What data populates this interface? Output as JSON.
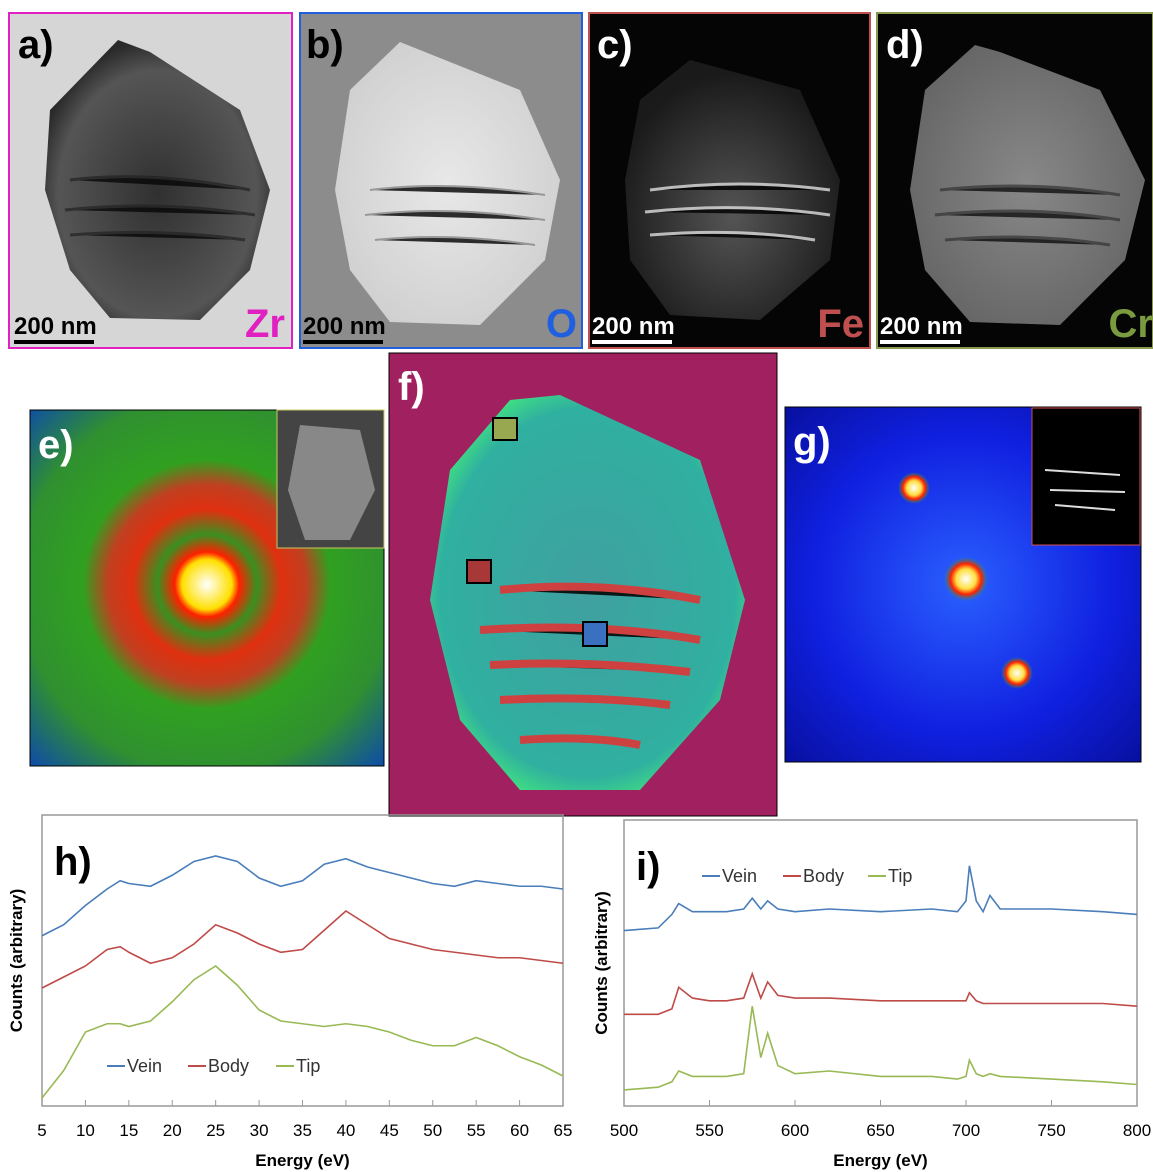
{
  "panels": [
    {
      "label": "a)",
      "element": "Zr",
      "scale_bar": "200 nm"
    },
    {
      "label": "b)",
      "element": "O",
      "scale_bar": "200 nm"
    },
    {
      "label": "c)",
      "element": "Fe",
      "scale_bar": "200 nm"
    },
    {
      "label": "d)",
      "element": "Cr",
      "scale_bar": "200 nm"
    },
    {
      "label": "e)"
    },
    {
      "label": "f)"
    },
    {
      "label": "g)"
    }
  ],
  "chart_data": [
    {
      "type": "line",
      "panel_label": "h)",
      "x_label": "Energy (eV)",
      "y_label": "Counts (arbitrary)",
      "x": [
        5,
        7.5,
        10,
        12.5,
        14,
        15,
        17.5,
        20,
        22.5,
        25,
        27.5,
        30,
        32.5,
        35,
        37.5,
        40,
        42.5,
        45,
        47.5,
        50,
        52.5,
        55,
        57.5,
        60,
        62.5,
        65
      ],
      "series": [
        {
          "name": "Vein",
          "color": "#4a7ebb",
          "values": [
            59,
            63,
            70,
            76,
            79,
            78,
            77,
            81,
            86,
            88,
            86,
            80,
            77,
            79,
            85,
            87,
            84,
            82,
            80,
            78,
            77,
            79,
            78,
            77,
            77,
            76
          ]
        },
        {
          "name": "Body",
          "color": "#be4b48",
          "values": [
            40,
            44,
            48,
            54,
            55,
            53,
            49,
            51,
            56,
            63,
            60,
            56,
            53,
            54,
            61,
            68,
            63,
            58,
            56,
            54,
            53,
            52,
            51,
            51,
            50,
            49
          ]
        },
        {
          "name": "Tip",
          "color": "#98b954",
          "values": [
            0,
            10,
            24,
            27,
            27,
            26,
            28,
            35,
            43,
            48,
            41,
            32,
            28,
            27,
            26,
            27,
            26,
            24,
            21,
            19,
            19,
            22,
            19,
            15,
            12,
            8
          ]
        }
      ],
      "xlim": [
        5,
        65
      ],
      "xticks": [
        5,
        10,
        15,
        20,
        25,
        30,
        35,
        40,
        45,
        50,
        55,
        60,
        65
      ],
      "ylim": [
        0,
        100
      ],
      "legend": "bottom"
    },
    {
      "type": "line",
      "panel_label": "i)",
      "x_label": "Energy (eV)",
      "y_label": "Counts (arbitrary)",
      "x": [
        500,
        520,
        528,
        532,
        540,
        550,
        560,
        570,
        575,
        580,
        584,
        590,
        600,
        620,
        650,
        680,
        695,
        700,
        702,
        706,
        710,
        714,
        720,
        750,
        780,
        800
      ],
      "series": [
        {
          "name": "Vein",
          "color": "#4a7ebb",
          "values": [
            62,
            63,
            68,
            72,
            69,
            69,
            69,
            70,
            74,
            70,
            73,
            70,
            69,
            70,
            69,
            70,
            69,
            73,
            86,
            73,
            69,
            75,
            70,
            70,
            69,
            68
          ]
        },
        {
          "name": "Body",
          "color": "#be4b48",
          "values": [
            31,
            31,
            33,
            41,
            37,
            36,
            36,
            37,
            46,
            37,
            43,
            38,
            37,
            37,
            36,
            36,
            36,
            36,
            39,
            36,
            35,
            35,
            35,
            35,
            35,
            34
          ]
        },
        {
          "name": "Tip",
          "color": "#98b954",
          "values": [
            3,
            4,
            6,
            10,
            8,
            8,
            8,
            9,
            34,
            15,
            24,
            12,
            9,
            10,
            8,
            8,
            7,
            8,
            14,
            9,
            8,
            9,
            8,
            7,
            6,
            5
          ]
        }
      ],
      "xlim": [
        500,
        800
      ],
      "xticks": [
        500,
        550,
        600,
        650,
        700,
        750,
        800
      ],
      "ylim": [
        0,
        100
      ],
      "legend": "top"
    }
  ]
}
